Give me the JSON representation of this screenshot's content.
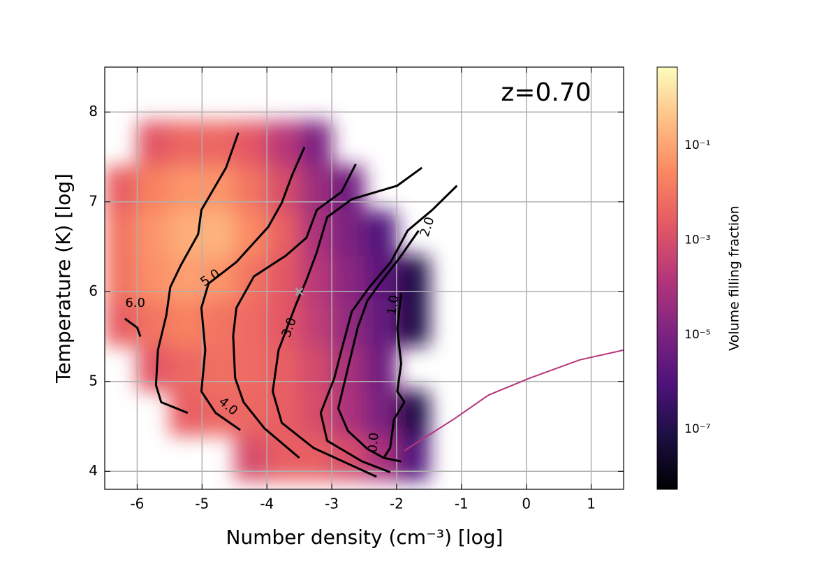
{
  "chart_data": {
    "type": "phase-diagram",
    "annotation": "z=0.70",
    "xlabel": "Number density (cm⁻³) [log]",
    "ylabel": "Temperature (K) [log]",
    "colorbar_label": "Volume filling fraction",
    "colormap": "magma",
    "xlim": [
      -6.5,
      1.5
    ],
    "ylim": [
      3.8,
      8.5
    ],
    "xticks": [
      -6,
      -5,
      -4,
      -3,
      -2,
      -1,
      0,
      1
    ],
    "yticks": [
      4,
      5,
      6,
      7,
      8
    ],
    "grid": true,
    "clim": [
      5.4e-09,
      4.5
    ],
    "clog": true,
    "cticks": [
      {
        "value": 1e-07,
        "label": "10⁻⁷"
      },
      {
        "value": 1e-05,
        "label": "10⁻⁵"
      },
      {
        "value": 0.001,
        "label": "10⁻³"
      },
      {
        "value": 0.1,
        "label": "10⁻¹"
      }
    ],
    "heatmap": {
      "x_edges": [
        -6.5,
        -6,
        -5.5,
        -5,
        -4.5,
        -4,
        -3.5,
        -3,
        -2.5,
        -2,
        -1.5
      ],
      "y_edges": [
        3.9,
        4.4,
        4.9,
        5.4,
        5.9,
        6.4,
        6.9,
        7.4,
        7.9
      ],
      "values": [
        [
          null,
          null,
          null,
          null,
          0.001,
          0.003,
          0.003,
          0.001,
          0.0001,
          1e-06
        ],
        [
          null,
          null,
          0.003,
          0.005,
          0.005,
          0.003,
          0.001,
          0.0001,
          1e-05,
          1e-07
        ],
        [
          null,
          0.002,
          0.005,
          0.008,
          0.006,
          0.003,
          0.0008,
          8e-05,
          5e-06,
          null
        ],
        [
          0.003,
          0.01,
          0.02,
          0.01,
          0.006,
          0.002,
          0.0003,
          3e-05,
          3e-06,
          1e-07
        ],
        [
          0.01,
          0.04,
          0.08,
          0.05,
          0.01,
          0.002,
          0.0002,
          2e-05,
          2e-06,
          1e-07
        ],
        [
          0.01,
          0.05,
          0.15,
          0.2,
          0.03,
          0.003,
          0.0001,
          1e-05,
          1e-06,
          null
        ],
        [
          0.003,
          0.02,
          0.05,
          0.05,
          0.01,
          0.001,
          5e-05,
          5e-06,
          null,
          null
        ],
        [
          null,
          0.002,
          0.005,
          0.005,
          0.002,
          0.0002,
          1e-05,
          null,
          null,
          null
        ]
      ]
    },
    "tail": {
      "x": [
        -1.88,
        -1.12,
        -0.58,
        0.06,
        0.82,
        1.5
      ],
      "y": [
        4.23,
        4.58,
        4.85,
        5.04,
        5.24,
        5.35
      ],
      "color": "#b5367a"
    },
    "marker": {
      "x": -3.5,
      "y": 6.0,
      "color": "#9aa4aa"
    },
    "contours": [
      {
        "level": {
          "value": 6,
          "label": "6.0"
        },
        "x": [
          -4.44,
          -4.63,
          -5.01,
          -5.06,
          -5.33,
          -5.49,
          -5.55,
          -5.68,
          -5.71,
          -5.63,
          -5.22,
          null,
          -6.19,
          -6.0,
          -5.95
        ],
        "y": [
          7.77,
          7.38,
          6.91,
          6.64,
          6.29,
          6.05,
          5.74,
          5.35,
          4.96,
          4.77,
          4.65,
          null,
          5.7,
          5.6,
          5.5
        ]
      },
      {
        "level": {
          "value": 5,
          "label": "5.0"
        },
        "x": [
          -3.42,
          -3.61,
          -3.77,
          -3.98,
          -4.47,
          -4.9,
          -5.01,
          -4.95,
          -5.01,
          -4.79,
          -4.41
        ],
        "y": [
          7.61,
          7.3,
          6.99,
          6.72,
          6.33,
          6.09,
          5.82,
          5.35,
          4.89,
          4.65,
          4.46
        ]
      },
      {
        "level": {
          "value": 4,
          "label": "4.0"
        },
        "x": [
          -2.63,
          -2.85,
          -3.23,
          -3.39,
          -3.71,
          -4.2,
          -4.47,
          -4.52,
          -4.49,
          -4.36,
          -4.04,
          -3.5
        ],
        "y": [
          7.42,
          7.11,
          6.91,
          6.6,
          6.4,
          6.17,
          5.82,
          5.51,
          5.04,
          4.77,
          4.48,
          4.15
        ]
      },
      {
        "level": {
          "value": 3,
          "label": "3.0"
        },
        "x": [
          -1.61,
          -1.99,
          -2.69,
          -3.07,
          -3.23,
          -3.39,
          -3.55,
          -3.82,
          -3.91,
          -3.77,
          -3.28,
          -2.31
        ],
        "y": [
          7.38,
          7.18,
          7.03,
          6.83,
          6.44,
          6.13,
          5.86,
          5.35,
          4.89,
          4.54,
          4.26,
          3.94
        ]
      },
      {
        "level": {
          "value": 2,
          "label": "2.0"
        },
        "x": [
          -1.07,
          -1.45,
          -1.83,
          -2.09,
          -2.42,
          -2.69,
          -2.85,
          -2.96,
          -3.17,
          -3.07,
          -2.53,
          -2.1
        ],
        "y": [
          7.18,
          6.91,
          6.68,
          6.33,
          6.05,
          5.78,
          5.35,
          5.04,
          4.65,
          4.34,
          4.11,
          3.99
        ]
      },
      {
        "level": {
          "value": 1,
          "label": "1.0"
        },
        "x": [
          -1.66,
          -1.95,
          -2.25,
          -2.45,
          -2.6,
          -2.7,
          -2.8,
          -2.9,
          -2.75,
          -2.45,
          -2.2
        ],
        "y": [
          6.68,
          6.38,
          6.1,
          5.9,
          5.6,
          5.3,
          5.0,
          4.7,
          4.45,
          4.25,
          4.15
        ]
      },
      {
        "level": {
          "value": 0,
          "label": "0.0"
        },
        "x": [
          -1.93,
          -1.99,
          -1.93,
          -1.99,
          -1.88,
          -2.04,
          -2.1,
          -2.2,
          -1.93
        ],
        "y": [
          5.98,
          5.59,
          5.2,
          4.89,
          4.77,
          4.58,
          4.26,
          4.15,
          4.11
        ]
      }
    ]
  }
}
